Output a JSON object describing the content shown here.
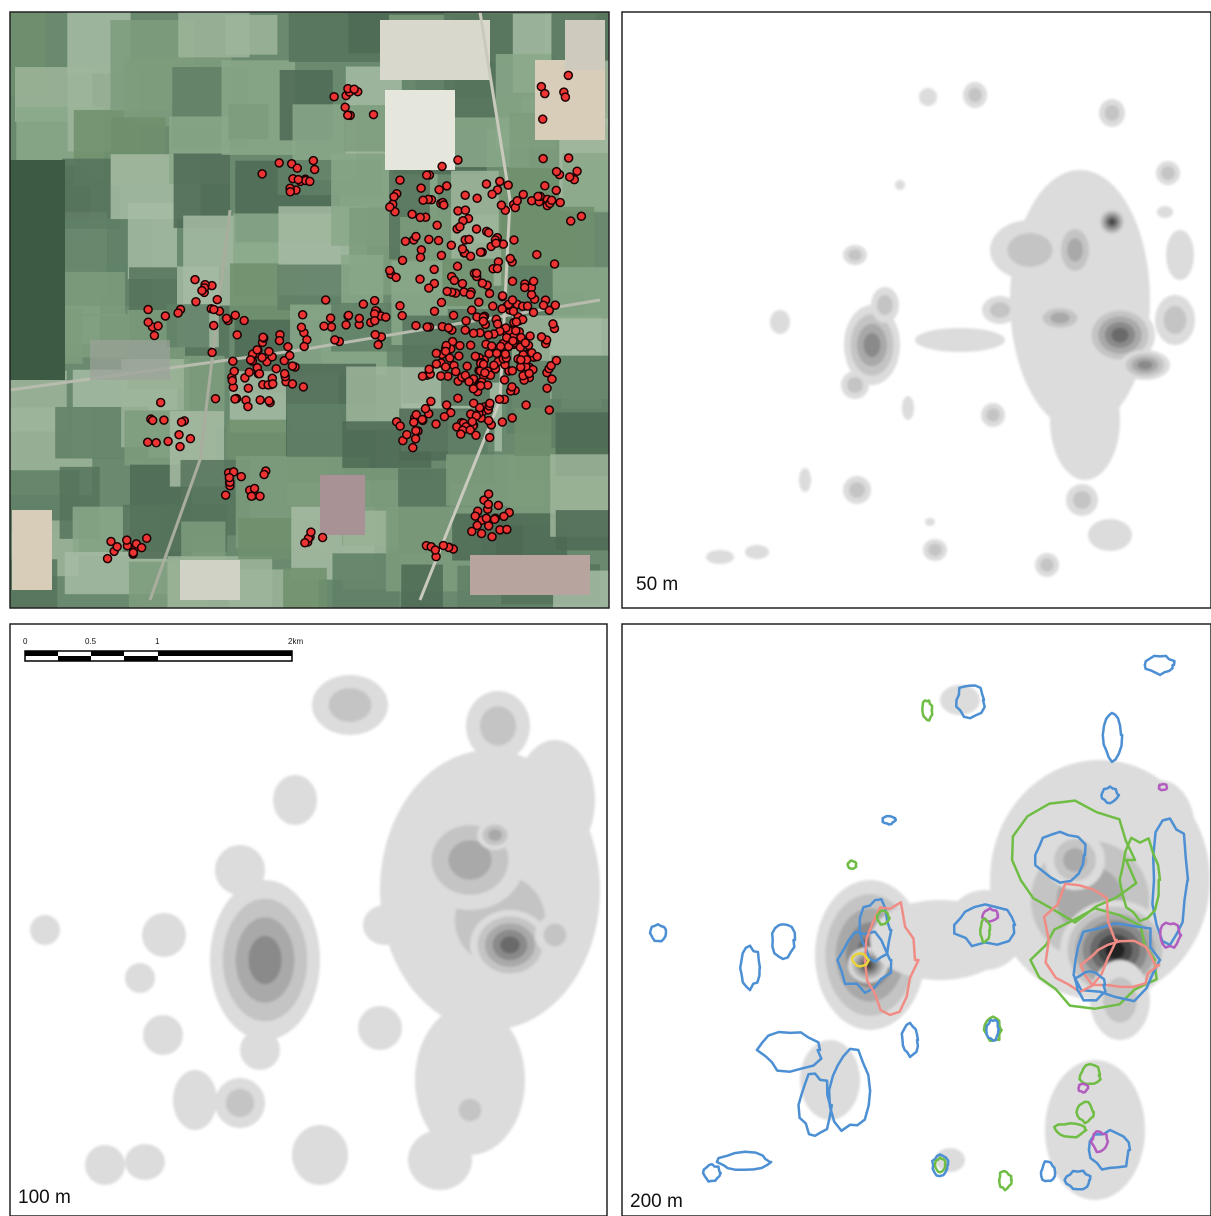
{
  "panels": {
    "top_right": {
      "label": "50 m"
    },
    "bottom_left": {
      "label": "100 m",
      "scale_bar": {
        "ticks": [
          "0",
          "0.5",
          "1",
          "2km"
        ]
      }
    },
    "bottom_right": {
      "label": "200 m"
    }
  }
}
